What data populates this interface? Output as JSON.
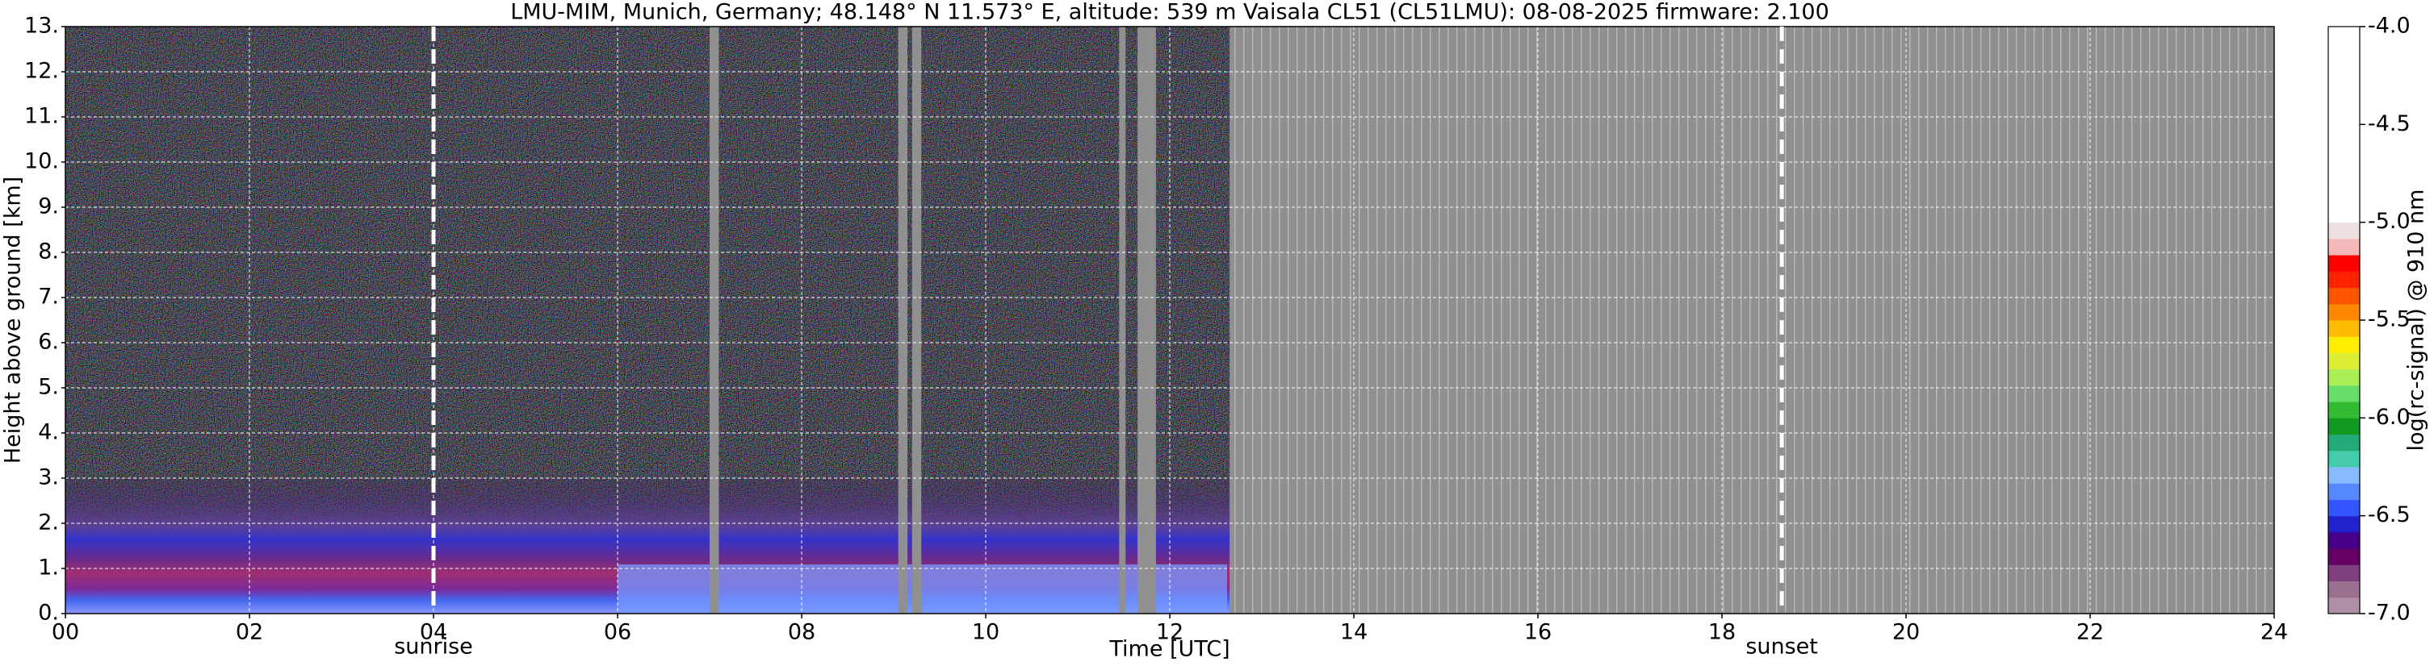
{
  "chart_data": {
    "type": "heatmap",
    "title": "LMU-MIM, Munich, Germany; 48.148° N 11.573° E, altitude: 539 m    Vaisala CL51 (CL51LMU): 08-08-2025    firmware: 2.100",
    "xlabel": "Time [UTC]",
    "ylabel": "Height above ground [km]",
    "xlim": [
      0,
      24
    ],
    "xticks": [
      {
        "value": 0,
        "label": "00"
      },
      {
        "value": 2,
        "label": "02"
      },
      {
        "value": 4,
        "label": "04"
      },
      {
        "value": 6,
        "label": "06"
      },
      {
        "value": 8,
        "label": "08"
      },
      10,
      12,
      14,
      16,
      18,
      20,
      22,
      24
    ],
    "ylim": [
      0,
      13
    ],
    "yticks": [
      {
        "value": 0,
        "label": "0."
      },
      {
        "value": 1,
        "label": "1."
      },
      {
        "value": 2,
        "label": "2."
      },
      {
        "value": 3,
        "label": "3."
      },
      {
        "value": 4,
        "label": "4."
      },
      {
        "value": 5,
        "label": "5."
      },
      {
        "value": 6,
        "label": "6."
      },
      {
        "value": 7,
        "label": "7."
      },
      {
        "value": 8,
        "label": "8."
      },
      {
        "value": 9,
        "label": "9."
      },
      {
        "value": 10,
        "label": "10."
      },
      {
        "value": 11,
        "label": "11."
      },
      {
        "value": 12,
        "label": "12."
      },
      {
        "value": 13,
        "label": "13."
      }
    ],
    "grid": true,
    "annotations": [
      {
        "label": "sunrise",
        "x": 4.0
      },
      {
        "label": "sunset",
        "x": 18.65
      }
    ],
    "missing_data": {
      "color": "#909090",
      "ranges": [
        [
          7.0,
          7.1
        ],
        [
          9.05,
          9.15
        ],
        [
          9.2,
          9.3
        ],
        [
          11.45,
          11.52
        ],
        [
          11.65,
          11.85
        ],
        [
          12.65,
          24
        ]
      ]
    },
    "colorbar": {
      "label": "log(rc-signal) @ 910 nm",
      "lim": [
        -7,
        -4
      ],
      "ticks": [
        {
          "value": -7,
          "label": "-7.0"
        },
        {
          "value": -6.5,
          "label": "-6.5"
        },
        {
          "value": -6,
          "label": "-6.0"
        },
        {
          "value": -5.5,
          "label": "-5.5"
        },
        {
          "value": -5,
          "label": "-5.0"
        },
        {
          "value": -4.5,
          "label": "-4.5"
        },
        {
          "value": -4,
          "label": "-4.0"
        }
      ],
      "colors": [
        "#b090a8",
        "#9a7090",
        "#804080",
        "#660066",
        "#440088",
        "#2222cc",
        "#3355ff",
        "#5588ff",
        "#88bbff",
        "#44ccaa",
        "#22aa77",
        "#119922",
        "#33bb33",
        "#66dd66",
        "#aaee55",
        "#ddee33",
        "#ffee00",
        "#ffbb00",
        "#ff8800",
        "#ff5500",
        "#ff2200",
        "#ff0000",
        "#f4b8b8",
        "#ede0e0",
        "#ffffff",
        "#ffffff",
        "#ffffff",
        "#ffffff",
        "#ffffff",
        "#ffffff",
        "#ffffff",
        "#ffffff",
        "#ffffff",
        "#ffffff",
        "#ffffff",
        "#ffffff"
      ]
    }
  }
}
